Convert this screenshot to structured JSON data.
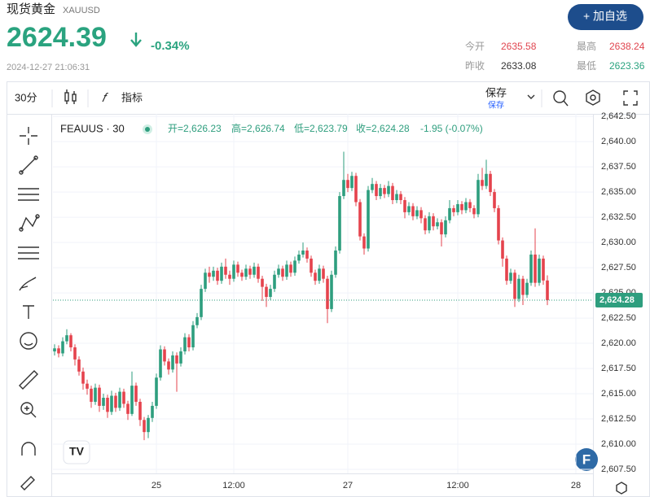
{
  "header": {
    "title": "现货黄金",
    "code": "XAUUSD",
    "price": "2624.39",
    "change": "-0.34%",
    "timestamp": "2024-12-27 21:06:31",
    "button": "+ 加自选",
    "stats": [
      {
        "label": "今开",
        "value": "2635.58"
      },
      {
        "label": "最高",
        "value": "2638.24"
      },
      {
        "label": "昨收",
        "value": "2633.08"
      },
      {
        "label": "最低",
        "value": "2623.36"
      }
    ]
  },
  "toolbar": {
    "interval": "30分",
    "indicators": "指标",
    "save": "保存",
    "save_sub": "保存"
  },
  "chart_data": {
    "type": "candlestick",
    "symbol": "FEAUUS · 30",
    "legend": [
      "开=2,626.23",
      "高=2,626.74",
      "低=2,623.79",
      "收=2,624.28",
      "-1.95 (-0.07%)"
    ],
    "up_color": "#2e9e7e",
    "down_color": "#e5434d",
    "grid": true,
    "last_price": {
      "value": 2624.28,
      "label": "2,624.28"
    },
    "xlim": [
      -0.4,
      132.2
    ],
    "xticks": [
      {
        "value": 25,
        "label": "25"
      },
      {
        "value": 44,
        "label": "12:00"
      },
      {
        "value": 72,
        "label": "27"
      },
      {
        "value": 99,
        "label": "12:00"
      },
      {
        "value": 128,
        "label": "28"
      }
    ],
    "ylim": [
      2607.1,
      2642.75
    ],
    "yticks": [
      {
        "value": 2607.5,
        "label": "2,607.50"
      },
      {
        "value": 2610,
        "label": "2,610.00"
      },
      {
        "value": 2612.5,
        "label": "2,612.50"
      },
      {
        "value": 2615,
        "label": "2,615.00"
      },
      {
        "value": 2617.5,
        "label": "2,617.50"
      },
      {
        "value": 2620,
        "label": "2,620.00"
      },
      {
        "value": 2622.5,
        "label": "2,622.50"
      },
      {
        "value": 2625,
        "label": "2,625.00"
      },
      {
        "value": 2627.5,
        "label": "2,627.50"
      },
      {
        "value": 2630,
        "label": "2,630.00"
      },
      {
        "value": 2632.5,
        "label": "2,632.50"
      },
      {
        "value": 2635,
        "label": "2,635.00"
      },
      {
        "value": 2637.5,
        "label": "2,637.50"
      },
      {
        "value": 2640,
        "label": "2,640.00"
      },
      {
        "value": 2642.5,
        "label": "2,642.50"
      }
    ],
    "open": [
      2619.2,
      2619.5,
      2619.0,
      2620.2,
      2620.8,
      2619.6,
      2618.4,
      2617.2,
      2616.0,
      2615.5,
      2614.2,
      2615.6,
      2613.8,
      2614.6,
      2613.2,
      2614.8,
      2613.6,
      2615.2,
      2614.0,
      2613.0,
      2615.8,
      2614.2,
      2612.4,
      2611.2,
      2612.6,
      2613.8,
      2616.6,
      2619.4,
      2618.2,
      2617.4,
      2618.8,
      2618.0,
      2619.2,
      2620.6,
      2619.6,
      2621.8,
      2622.6,
      2625.4,
      2627.0,
      2626.6,
      2627.2,
      2626.2,
      2627.6,
      2626.8,
      2626.4,
      2627.8,
      2627.0,
      2626.6,
      2627.4,
      2626.8,
      2627.6,
      2626.4,
      2625.6,
      2624.6,
      2625.4,
      2626.8,
      2627.4,
      2626.6,
      2627.8,
      2627.0,
      2628.2,
      2628.8,
      2629.2,
      2628.4,
      2627.0,
      2626.2,
      2627.4,
      2626.4,
      2623.4,
      2626.8,
      2629.2,
      2634.6,
      2636.2,
      2635.4,
      2636.6,
      2634.0,
      2630.6,
      2629.4,
      2635.2,
      2635.8,
      2634.6,
      2635.4,
      2634.8,
      2635.6,
      2634.2,
      2634.8,
      2634.2,
      2633.0,
      2633.6,
      2632.6,
      2633.2,
      2632.4,
      2631.2,
      2632.6,
      2631.6,
      2632.0,
      2630.8,
      2632.2,
      2633.4,
      2633.0,
      2633.8,
      2633.2,
      2634.0,
      2633.4,
      2632.8,
      2636.2,
      2635.6,
      2636.8,
      2635.0,
      2633.4,
      2630.2,
      2628.4,
      2626.2,
      2627.0,
      2624.4,
      2626.4,
      2624.8,
      2626.0,
      2628.8,
      2626.0,
      2628.4,
      2626.23
    ],
    "high": [
      2619.9,
      2619.8,
      2620.6,
      2621.4,
      2621.0,
      2619.9,
      2618.7,
      2617.6,
      2616.4,
      2615.8,
      2616.0,
      2615.9,
      2615.0,
      2614.9,
      2615.3,
      2615.1,
      2615.6,
      2615.5,
      2614.3,
      2617.2,
      2616.1,
      2614.5,
      2612.7,
      2612.9,
      2614.2,
      2617.0,
      2619.8,
      2619.7,
      2618.5,
      2619.2,
      2619.1,
      2619.6,
      2621.0,
      2620.9,
      2622.2,
      2623.0,
      2625.8,
      2627.4,
      2627.6,
      2627.6,
      2627.5,
      2628.0,
      2628.4,
      2627.2,
      2628.2,
      2628.1,
      2627.3,
      2627.8,
      2627.7,
      2628.0,
      2627.9,
      2626.7,
      2625.9,
      2625.8,
      2627.2,
      2627.8,
      2627.7,
      2628.2,
      2628.1,
      2628.6,
      2629.2,
      2630.0,
      2629.5,
      2628.7,
      2627.3,
      2627.8,
      2627.7,
      2626.7,
      2627.2,
      2629.6,
      2635.0,
      2639.0,
      2636.8,
      2637.0,
      2636.9,
      2634.3,
      2630.9,
      2635.6,
      2636.4,
      2636.1,
      2635.8,
      2635.7,
      2636.1,
      2635.9,
      2635.2,
      2635.1,
      2634.5,
      2634.0,
      2633.9,
      2633.6,
      2633.5,
      2632.7,
      2633.0,
      2632.9,
      2632.4,
      2632.3,
      2632.6,
      2634.2,
      2633.7,
      2634.2,
      2634.1,
      2634.4,
      2634.3,
      2633.7,
      2636.8,
      2637.4,
      2638.2,
      2637.1,
      2635.3,
      2633.7,
      2630.5,
      2628.7,
      2627.4,
      2627.3,
      2626.8,
      2626.7,
      2626.4,
      2629.2,
      2631.4,
      2628.8,
      2628.7,
      2626.74
    ],
    "low": [
      2618.8,
      2618.6,
      2618.7,
      2619.9,
      2619.2,
      2617.8,
      2616.8,
      2615.4,
      2614.9,
      2613.6,
      2613.9,
      2613.2,
      2613.4,
      2612.6,
      2612.9,
      2613.2,
      2613.3,
      2613.6,
      2612.4,
      2612.8,
      2613.8,
      2611.8,
      2610.4,
      2610.6,
      2612.2,
      2613.5,
      2616.3,
      2617.8,
      2616.9,
      2617.1,
      2615.2,
      2617.7,
      2618.9,
      2619.2,
      2619.3,
      2621.5,
      2622.3,
      2625.1,
      2626.0,
      2626.2,
      2625.8,
      2625.9,
      2626.4,
      2625.8,
      2626.1,
      2626.6,
      2626.2,
      2626.3,
      2626.4,
      2626.5,
      2626.0,
      2624.2,
      2623.6,
      2624.3,
      2625.1,
      2626.5,
      2626.2,
      2626.3,
      2626.6,
      2626.7,
      2627.9,
      2628.5,
      2628.0,
      2626.6,
      2625.8,
      2625.9,
      2626.0,
      2622.0,
      2623.1,
      2626.5,
      2628.9,
      2634.3,
      2635.0,
      2635.1,
      2633.6,
      2630.2,
      2628.8,
      2629.1,
      2634.9,
      2634.2,
      2634.3,
      2634.4,
      2634.5,
      2633.8,
      2633.9,
      2633.8,
      2632.4,
      2632.7,
      2632.2,
      2632.3,
      2631.9,
      2630.8,
      2630.9,
      2631.2,
      2631.3,
      2629.6,
      2630.5,
      2631.9,
      2632.6,
      2632.7,
      2632.8,
      2632.9,
      2633.0,
      2632.4,
      2632.5,
      2635.2,
      2635.3,
      2634.6,
      2633.0,
      2629.8,
      2627.6,
      2625.8,
      2625.9,
      2623.6,
      2624.1,
      2623.8,
      2624.5,
      2625.7,
      2625.6,
      2625.7,
      2625.8,
      2623.79
    ],
    "close": [
      2619.5,
      2619.0,
      2620.2,
      2620.8,
      2619.6,
      2618.4,
      2617.2,
      2616.0,
      2615.5,
      2614.2,
      2615.6,
      2613.8,
      2614.6,
      2613.2,
      2614.8,
      2613.6,
      2615.2,
      2614.0,
      2613.0,
      2615.8,
      2614.2,
      2612.4,
      2611.2,
      2612.6,
      2613.8,
      2616.6,
      2619.4,
      2618.2,
      2617.4,
      2618.8,
      2618.0,
      2619.2,
      2620.6,
      2619.6,
      2621.8,
      2622.6,
      2625.4,
      2627.0,
      2626.6,
      2627.2,
      2626.2,
      2627.6,
      2626.8,
      2626.4,
      2627.8,
      2627.0,
      2626.6,
      2627.4,
      2626.8,
      2627.6,
      2626.4,
      2625.6,
      2624.6,
      2625.4,
      2626.8,
      2627.4,
      2626.6,
      2627.8,
      2627.0,
      2628.2,
      2628.8,
      2629.2,
      2628.4,
      2627.0,
      2626.2,
      2627.4,
      2626.4,
      2623.4,
      2626.8,
      2629.2,
      2634.6,
      2636.2,
      2635.4,
      2636.6,
      2634.0,
      2630.6,
      2629.4,
      2635.2,
      2635.8,
      2634.6,
      2635.4,
      2634.8,
      2635.6,
      2634.2,
      2634.8,
      2634.2,
      2633.0,
      2633.6,
      2632.6,
      2633.2,
      2632.4,
      2631.2,
      2632.6,
      2631.6,
      2632.0,
      2630.8,
      2632.2,
      2633.4,
      2633.0,
      2633.8,
      2633.2,
      2634.0,
      2633.4,
      2632.8,
      2636.2,
      2635.6,
      2636.8,
      2635.0,
      2633.4,
      2630.2,
      2628.4,
      2626.2,
      2627.0,
      2624.4,
      2626.4,
      2624.8,
      2626.0,
      2628.8,
      2626.0,
      2628.4,
      2626.23,
      2624.28
    ]
  }
}
